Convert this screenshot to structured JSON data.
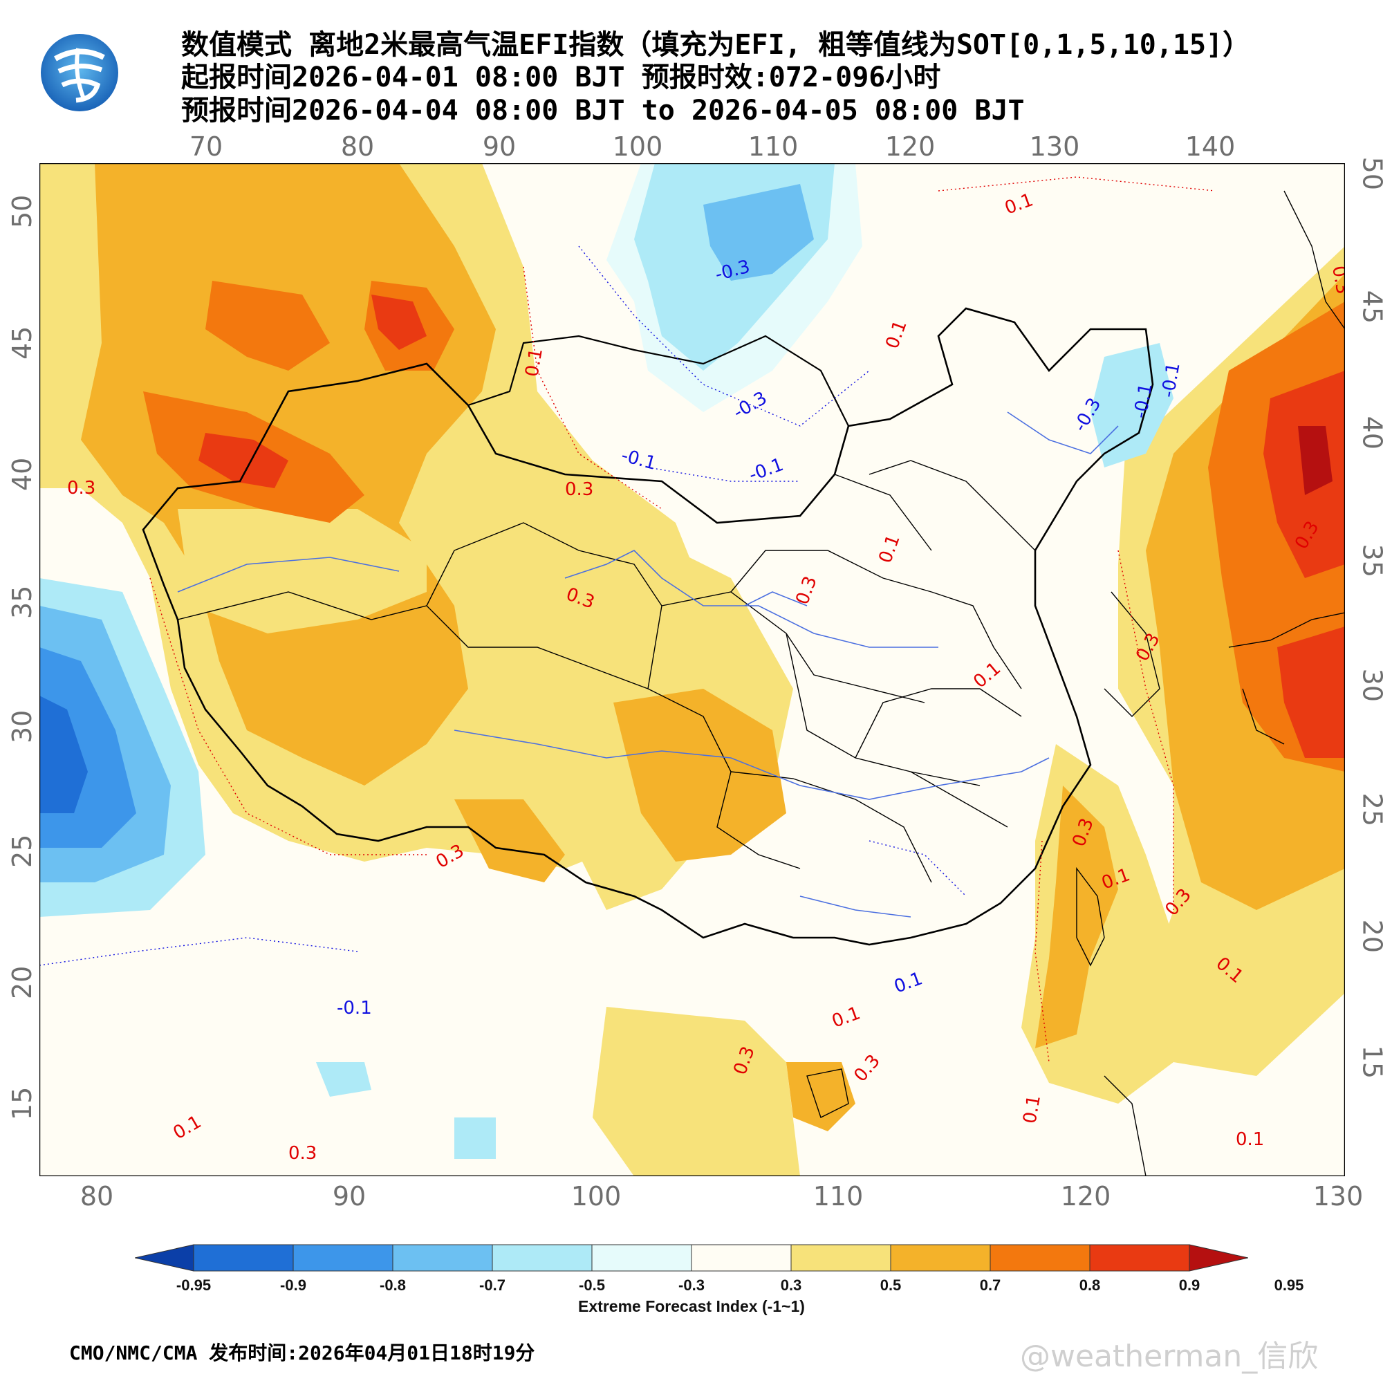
{
  "header": {
    "title_line1": "数值模式 离地2米最高气温EFI指数（填充为EFI, 粗等值线为SOT[0,1,5,10,15]）",
    "title_line2": "起报时间2026-04-01 08:00 BJT 预报时效:072-096小时",
    "title_line3": "预报时间2026-04-04 08:00 BJT to 2026-04-05 08:00 BJT"
  },
  "axes": {
    "lon_top": [
      "70",
      "80",
      "90",
      "100",
      "110",
      "120",
      "130",
      "140"
    ],
    "lon_bottom": [
      "80",
      "90",
      "100",
      "110",
      "120",
      "130"
    ],
    "lat_left": [
      "50",
      "45",
      "40",
      "35",
      "30",
      "25",
      "20",
      "15"
    ],
    "lat_right": [
      "50",
      "45",
      "40",
      "35",
      "30",
      "25",
      "20",
      "15"
    ]
  },
  "contour_labels": {
    "positive_color": "#e00000",
    "negative_color": "#1010e0",
    "positive": [
      "0.1",
      "0.1",
      "0.3",
      "0.3",
      "0.3",
      "0.3",
      "0.1",
      "0.1",
      "0.3",
      "0.3",
      "0.3",
      "0.1",
      "0.3",
      "0.1",
      "0.3",
      "0.1",
      "0.1",
      "0.3",
      "0.1",
      "0.3",
      "0.1",
      "0.3",
      "0.1",
      "0.3"
    ],
    "negative": [
      "-0.3",
      "-0.3",
      "-0.1",
      "-0.1",
      "-0.1",
      "-0.3",
      "-0.1",
      "-0.1",
      "0.1"
    ]
  },
  "colorbar": {
    "ticks": [
      "-0.95",
      "-0.9",
      "-0.8",
      "-0.7",
      "-0.5",
      "-0.3",
      "0.3",
      "0.5",
      "0.7",
      "0.8",
      "0.9",
      "0.95"
    ],
    "colors": [
      "#0b3fa8",
      "#1f6fd6",
      "#3d96ea",
      "#6cc0f2",
      "#aeeaf7",
      "#e6fbfb",
      "#fffdf4",
      "#f7e27a",
      "#f4b22a",
      "#f3780e",
      "#e93a12",
      "#b51010"
    ],
    "caption": "Extreme Forecast Index (-1~1)"
  },
  "footer": {
    "issuer": "CMO/NMC/CMA 发布时间:2026年04月01日18时19分",
    "watermark": "@weatherman_信欣"
  }
}
